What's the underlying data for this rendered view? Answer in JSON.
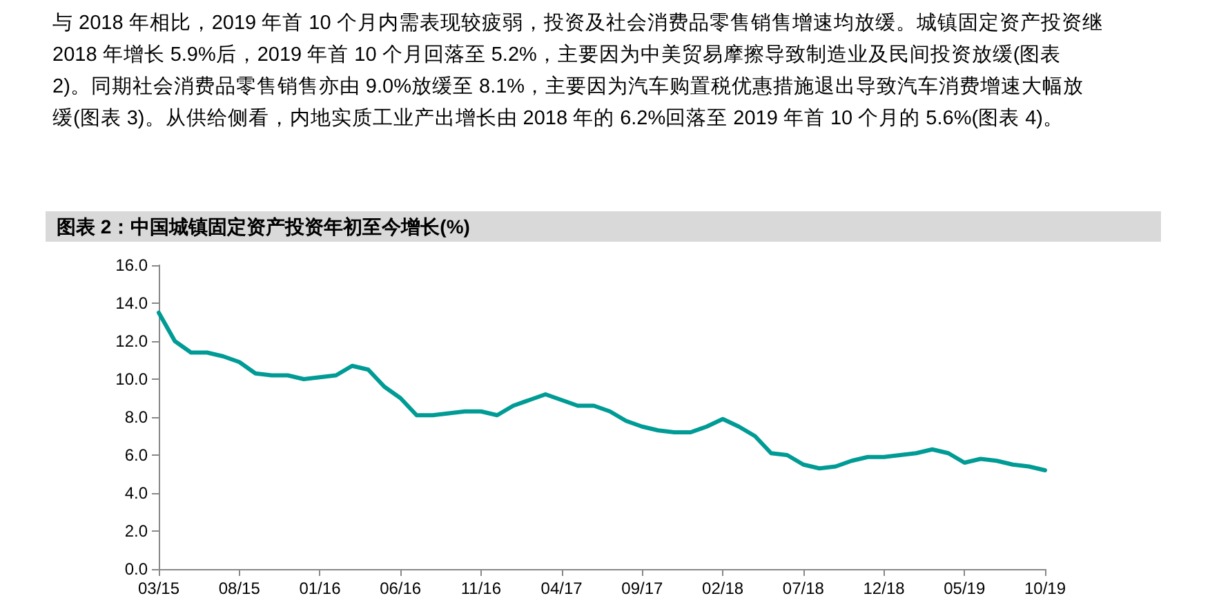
{
  "chart_data": {
    "type": "line",
    "title": "图表 2：中国城镇固定资产投资年初至今增长(%)",
    "annotations": [
      "与 2018 年相比，2019 年首 10 个月内需表现较疲弱，投资及社会消费品零售销售增速均放缓。城镇固定资产投资继 2018 年增长 5.9%后，2019 年首 10 个月回落至 5.2%，主要因为中美贸易摩擦导致制造业及民间投资放缓(图表 2)。同期社会消费品零售销售亦由 9.0%放缓至 8.1%，主要因为汽车购置税优惠措施退出导致汽车消费增速大幅放缓(图表 3)。从供给侧看，内地实质工业产出增长由 2018 年的 6.2%回落至 2019 年首 10 个月的 5.6%(图表 4)。"
    ],
    "categories": [
      "03/15",
      null,
      null,
      null,
      null,
      "08/15",
      null,
      null,
      null,
      null,
      "01/16",
      null,
      null,
      null,
      null,
      "06/16",
      null,
      null,
      null,
      null,
      "11/16",
      null,
      null,
      null,
      null,
      "04/17",
      null,
      null,
      null,
      null,
      "09/17",
      null,
      null,
      null,
      null,
      "02/18",
      null,
      null,
      null,
      null,
      "07/18",
      null,
      null,
      null,
      null,
      "12/18",
      null,
      null,
      null,
      null,
      "05/19",
      null,
      null,
      null,
      null,
      "10/19"
    ],
    "series": [
      {
        "color": "#009b95",
        "values": [
          13.5,
          12.0,
          11.4,
          11.4,
          11.2,
          10.9,
          10.3,
          10.2,
          10.2,
          10.0,
          10.1,
          10.2,
          10.7,
          10.5,
          9.6,
          9.0,
          8.1,
          8.1,
          8.2,
          8.3,
          8.3,
          8.1,
          8.6,
          8.9,
          9.2,
          8.9,
          8.6,
          8.6,
          8.3,
          7.8,
          7.5,
          7.3,
          7.2,
          7.2,
          7.5,
          7.9,
          7.5,
          7.0,
          6.1,
          6.0,
          5.5,
          5.3,
          5.4,
          5.7,
          5.9,
          5.9,
          6.0,
          6.1,
          6.3,
          6.1,
          5.6,
          5.8,
          5.7,
          5.5,
          5.4,
          5.2
        ]
      }
    ],
    "ylim": [
      0,
      16
    ],
    "yticks": [
      {
        "value": 0,
        "label": "0.0"
      },
      {
        "value": 2,
        "label": "2.0"
      },
      {
        "value": 4,
        "label": "4.0"
      },
      {
        "value": 6,
        "label": "6.0"
      },
      {
        "value": 8,
        "label": "8.0"
      },
      {
        "value": 10,
        "label": "10.0"
      },
      {
        "value": 12,
        "label": "12.0"
      },
      {
        "value": 14,
        "label": "14.0"
      },
      {
        "value": 16,
        "label": "16.0"
      }
    ],
    "marker": "none",
    "line_style": "solid"
  }
}
